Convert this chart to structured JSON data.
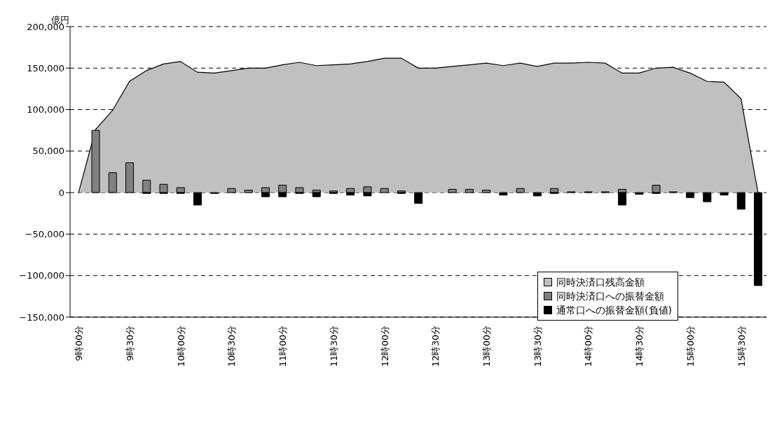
{
  "chart_data": {
    "type": "bar",
    "ylabel": "億円",
    "categories": [
      "9時00分",
      null,
      null,
      "9時30分",
      null,
      null,
      "10時00分",
      null,
      null,
      "10時30分",
      null,
      null,
      "11時00分",
      null,
      null,
      "11時30分",
      null,
      null,
      "12時00分",
      null,
      null,
      "12時30分",
      null,
      null,
      "13時00分",
      null,
      null,
      "13時30分",
      null,
      null,
      "14時00分",
      null,
      null,
      "14時30分",
      null,
      null,
      "15時00分",
      null,
      null,
      "15時30分",
      null
    ],
    "series": [
      {
        "name": "同時決済口残高金額",
        "type": "area",
        "color": "#c0c0c0",
        "values": [
          0,
          76000,
          99000,
          134000,
          147000,
          155000,
          158000,
          145000,
          144000,
          147000,
          150000,
          150000,
          154000,
          157000,
          153000,
          154000,
          155000,
          158000,
          162000,
          162000,
          150000,
          150000,
          152000,
          154000,
          156000,
          153000,
          156000,
          152000,
          156000,
          156000,
          157000,
          156000,
          144000,
          144000,
          150000,
          151000,
          144000,
          134000,
          133000,
          113000,
          0
        ]
      },
      {
        "name": "同時決済口への振替金額",
        "type": "bar",
        "color": "#808080",
        "values": [
          0,
          75000,
          24000,
          36000,
          15000,
          10000,
          6000,
          0,
          null,
          5000,
          3000,
          6000,
          9000,
          6000,
          3000,
          2000,
          5000,
          7000,
          5000,
          2000,
          0,
          0,
          4000,
          4000,
          3000,
          0,
          5000,
          0,
          5000,
          1000,
          1000,
          1000,
          4000,
          0,
          9000,
          1000,
          0,
          0,
          0,
          0,
          0
        ]
      },
      {
        "name": "通常口への振替金額(負値)",
        "type": "bar",
        "color": "#000000",
        "values": [
          0,
          0,
          0,
          0,
          -1000,
          -1000,
          -1000,
          -15000,
          -1000,
          0,
          0,
          -5000,
          -5000,
          -1000,
          -5000,
          -1000,
          -3000,
          -4000,
          0,
          -1000,
          -13000,
          0,
          0,
          0,
          0,
          -3000,
          0,
          -4000,
          -1000,
          0,
          0,
          0,
          -15000,
          -2000,
          -1000,
          0,
          -6000,
          -11000,
          -3000,
          -20000,
          -112000
        ]
      }
    ],
    "stacked": true,
    "ylim": [
      -150000,
      200000
    ],
    "yticks": [
      {
        "value": -150000,
        "label": "−150,000"
      },
      {
        "value": -100000,
        "label": "−100,000"
      },
      {
        "value": -50000,
        "label": "−50,000"
      },
      0,
      {
        "value": 50000,
        "label": "50,000"
      },
      {
        "value": 100000,
        "label": "100,000"
      },
      {
        "value": 150000,
        "label": "150,000"
      },
      {
        "value": 200000,
        "label": "200,000"
      }
    ],
    "grid": "y",
    "legend": "bottom right"
  }
}
